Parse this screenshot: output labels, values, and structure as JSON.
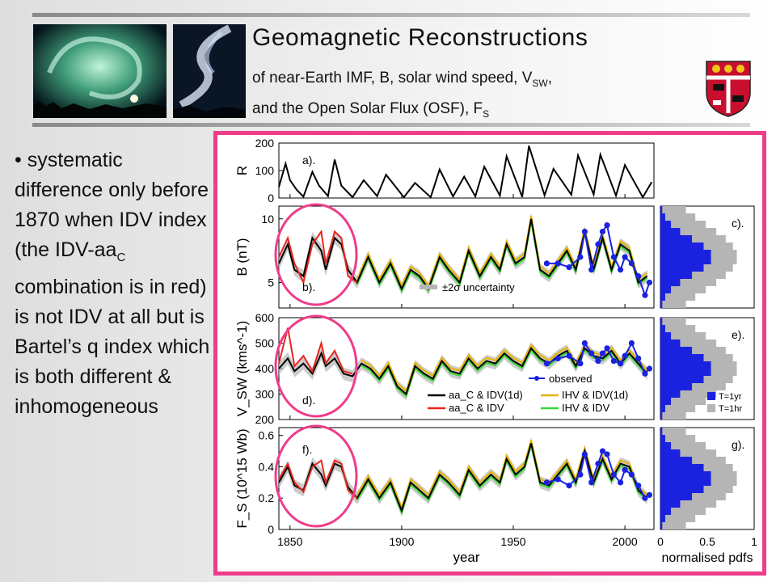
{
  "header": {
    "title": "Geomagnetic Reconstructions",
    "subtitle_1_prefix": "of near-Earth IMF, B, solar wind speed, V",
    "subtitle_1_sub": "SW",
    "subtitle_1_suffix": ",",
    "subtitle_2_prefix": "and the Open Solar Flux (OSF), F",
    "subtitle_2_sub": "S"
  },
  "bullet": {
    "symbol": "•",
    "line1": "systematic difference only before 1870 when IDV index (the IDV-aa",
    "line1_sub": "C",
    "line2": " combination is in red) is not IDV at all but is Bartel’s q index which is both different & inhomogeneous"
  },
  "colors": {
    "frame": "#ee3d8a",
    "circle": "#ee3d8a",
    "aa_idv1d": "#000000",
    "aa_idv": "#e8261c",
    "ihv_idv1d": "#e6b400",
    "ihv_idv": "#33d933",
    "observed": "#1a22e0",
    "uncertainty": "#b5b5b5"
  },
  "icons": {
    "photo_left": "aurora-photo",
    "photo_right": "aurora-photo-2",
    "crest": "university-crest-icon"
  },
  "chart_data": [
    {
      "type": "line",
      "panel_label": "a).",
      "ylabel": "R",
      "yticks": [
        0,
        100,
        200
      ],
      "ylim": [
        0,
        200
      ],
      "xlim": [
        1845,
        2013
      ],
      "series": [
        {
          "name": "",
          "x": [
            1845,
            1848,
            1850,
            1853,
            1856,
            1860,
            1863,
            1867,
            1870,
            1873,
            1878,
            1883,
            1889,
            1893,
            1901,
            1906,
            1913,
            1917,
            1923,
            1928,
            1933,
            1937,
            1944,
            1947,
            1954,
            1957,
            1964,
            1968,
            1976,
            1979,
            1986,
            1989,
            1996,
            2000,
            2008,
            2012
          ],
          "values": [
            40,
            125,
            65,
            30,
            5,
            95,
            45,
            7,
            140,
            45,
            3,
            65,
            7,
            85,
            3,
            55,
            3,
            104,
            6,
            78,
            6,
            114,
            9,
            152,
            4,
            190,
            10,
            106,
            12,
            155,
            13,
            158,
            9,
            120,
            3,
            58
          ]
        }
      ]
    },
    {
      "type": "line",
      "panel_label": "b).",
      "ylabel": "B (nT)",
      "yticks": [
        5,
        10
      ],
      "ylim": [
        3,
        11
      ],
      "xlim": [
        1845,
        2013
      ],
      "series": [
        {
          "name": "aa_C & IDV(1d)",
          "x": [
            1845,
            1849,
            1852,
            1856,
            1860,
            1864,
            1866,
            1870,
            1873,
            1876,
            1880,
            1885,
            1890,
            1895,
            1900,
            1904,
            1908,
            1912,
            1917,
            1921,
            1926,
            1930,
            1935,
            1940,
            1944,
            1947,
            1951,
            1955,
            1958,
            1962,
            1966,
            1970,
            1974,
            1978,
            1982,
            1986,
            1990,
            1994,
            1998,
            2002,
            2006,
            2010
          ],
          "values": [
            6.5,
            8,
            6,
            5.5,
            8.5,
            7.5,
            6,
            8.5,
            8,
            6,
            5,
            7,
            5,
            6.5,
            4.5,
            6,
            5.5,
            4.5,
            7,
            6,
            5,
            7.5,
            5.5,
            7,
            6,
            8,
            6.5,
            7,
            10,
            6,
            5.5,
            6.5,
            7.5,
            6,
            9,
            6,
            8.5,
            6,
            8,
            7.5,
            5,
            5.5
          ]
        },
        {
          "name": "aa_C & IDV",
          "x": [
            1845,
            1849,
            1852,
            1856,
            1860,
            1864,
            1866,
            1870,
            1873,
            1876,
            1880
          ],
          "values": [
            7,
            8.5,
            6.5,
            5,
            8,
            9,
            6.5,
            9,
            8.5,
            5.5,
            5
          ]
        },
        {
          "name": "observed",
          "x": [
            1965,
            1970,
            1975,
            1980,
            1982,
            1985,
            1988,
            1990,
            1992,
            1995,
            1998,
            2000,
            2003,
            2006,
            2009,
            2011
          ],
          "values": [
            6.5,
            6.5,
            6.2,
            7,
            9,
            6,
            8,
            9,
            9.5,
            7,
            6,
            7,
            6.5,
            5.5,
            4,
            5
          ]
        }
      ],
      "legend": [
        "±2σ uncertainty"
      ]
    },
    {
      "type": "line",
      "panel_label": "d).",
      "ylabel": "V_SW (kms^-1)",
      "yticks": [
        200,
        300,
        400,
        500,
        600
      ],
      "ylim": [
        200,
        600
      ],
      "xlim": [
        1845,
        2013
      ],
      "series": [
        {
          "name": "aa_C & IDV(1d)",
          "x": [
            1845,
            1849,
            1852,
            1856,
            1860,
            1864,
            1866,
            1870,
            1874,
            1878,
            1882,
            1886,
            1890,
            1894,
            1898,
            1902,
            1906,
            1910,
            1914,
            1918,
            1922,
            1926,
            1930,
            1934,
            1938,
            1942,
            1946,
            1950,
            1954,
            1958,
            1962,
            1966,
            1970,
            1974,
            1978,
            1982,
            1986,
            1990,
            1994,
            1998,
            2002,
            2006,
            2010
          ],
          "values": [
            400,
            440,
            390,
            420,
            380,
            460,
            410,
            440,
            380,
            370,
            420,
            400,
            360,
            410,
            330,
            300,
            410,
            380,
            360,
            430,
            390,
            380,
            440,
            400,
            430,
            420,
            460,
            430,
            410,
            480,
            440,
            420,
            450,
            470,
            410,
            480,
            450,
            440,
            470,
            420,
            460,
            420,
            380
          ]
        },
        {
          "name": "aa_C & IDV",
          "x": [
            1845,
            1849,
            1852,
            1856,
            1860,
            1864,
            1866,
            1870,
            1874,
            1878
          ],
          "values": [
            420,
            560,
            410,
            450,
            390,
            500,
            420,
            470,
            390,
            380
          ]
        },
        {
          "name": "observed",
          "x": [
            1965,
            1970,
            1975,
            1980,
            1982,
            1985,
            1988,
            1990,
            1992,
            1995,
            1998,
            2000,
            2003,
            2006,
            2009,
            2011
          ],
          "values": [
            420,
            440,
            450,
            420,
            500,
            460,
            430,
            460,
            480,
            430,
            420,
            450,
            500,
            440,
            380,
            400
          ]
        }
      ],
      "legend": [
        "aa_C & IDV(1d)",
        "aa_C & IDV",
        "IHV & IDV(1d)",
        "IHV & IDV",
        "observed"
      ]
    },
    {
      "type": "line",
      "panel_label": "f).",
      "ylabel": "F_S (10^15 Wb)",
      "yticks": [
        0,
        0.2,
        0.4,
        0.6
      ],
      "ylim": [
        0,
        0.65
      ],
      "xlim": [
        1845,
        2013
      ],
      "series": [
        {
          "name": "aa_C & IDV(1d)",
          "x": [
            1845,
            1849,
            1852,
            1856,
            1860,
            1864,
            1866,
            1870,
            1873,
            1876,
            1880,
            1885,
            1890,
            1895,
            1900,
            1904,
            1908,
            1912,
            1917,
            1921,
            1926,
            1930,
            1935,
            1940,
            1944,
            1947,
            1951,
            1955,
            1958,
            1962,
            1966,
            1970,
            1974,
            1978,
            1982,
            1986,
            1990,
            1994,
            1998,
            2002,
            2006,
            2010
          ],
          "values": [
            0.3,
            0.4,
            0.28,
            0.25,
            0.42,
            0.35,
            0.28,
            0.42,
            0.4,
            0.27,
            0.2,
            0.32,
            0.2,
            0.3,
            0.12,
            0.3,
            0.25,
            0.2,
            0.35,
            0.3,
            0.22,
            0.38,
            0.28,
            0.35,
            0.3,
            0.45,
            0.35,
            0.4,
            0.55,
            0.3,
            0.28,
            0.35,
            0.42,
            0.3,
            0.5,
            0.3,
            0.45,
            0.32,
            0.42,
            0.4,
            0.25,
            0.2
          ]
        },
        {
          "name": "aa_C & IDV",
          "x": [
            1845,
            1849,
            1852,
            1856,
            1860,
            1864,
            1866,
            1870,
            1873,
            1876,
            1880
          ],
          "values": [
            0.32,
            0.42,
            0.3,
            0.24,
            0.4,
            0.44,
            0.3,
            0.44,
            0.42,
            0.25,
            0.2
          ]
        },
        {
          "name": "observed",
          "x": [
            1965,
            1970,
            1975,
            1980,
            1982,
            1985,
            1988,
            1990,
            1992,
            1995,
            1998,
            2000,
            2003,
            2006,
            2009,
            2011
          ],
          "values": [
            0.3,
            0.32,
            0.28,
            0.35,
            0.48,
            0.3,
            0.42,
            0.5,
            0.48,
            0.35,
            0.3,
            0.38,
            0.35,
            0.28,
            0.2,
            0.22
          ]
        }
      ]
    },
    {
      "type": "bar",
      "orientation": "horizontal",
      "panel_labels": [
        "c).",
        "e).",
        "g)."
      ],
      "xlabel": "normalised pdfs",
      "xticks": [
        0,
        0.5,
        1
      ],
      "series_names": [
        "T=1yr",
        "T=1hr"
      ]
    }
  ],
  "axes_text": {
    "xlabel": "year",
    "xticks": [
      1850,
      1900,
      1950,
      2000
    ]
  }
}
